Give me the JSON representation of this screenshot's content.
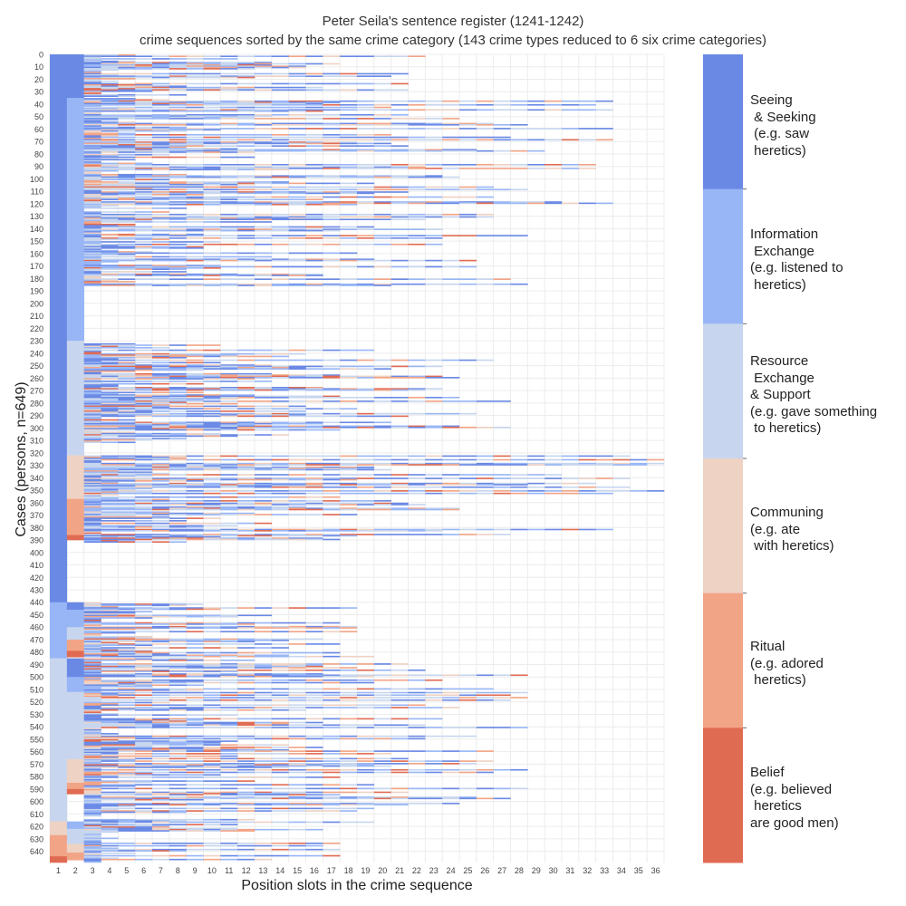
{
  "chart_data": {
    "type": "heatmap",
    "title": "Peter Seila's sentence register (1241-1242)",
    "subtitle": "crime sequences sorted by the same crime category (143 crime types reduced to 6 six crime categories)",
    "xlabel": "Position slots in the crime sequence",
    "ylabel": "Cases (persons, n=649)",
    "x_ticks": [
      "1",
      "2",
      "3",
      "4",
      "5",
      "6",
      "7",
      "8",
      "9",
      "10",
      "11",
      "12",
      "13",
      "14",
      "15",
      "16",
      "17",
      "18",
      "19",
      "20",
      "21",
      "22",
      "23",
      "24",
      "25",
      "26",
      "27",
      "28",
      "29",
      "30",
      "31",
      "32",
      "33",
      "34",
      "35",
      "36"
    ],
    "y_ticks": [
      "0",
      "10",
      "20",
      "30",
      "40",
      "50",
      "60",
      "70",
      "80",
      "90",
      "100",
      "110",
      "120",
      "130",
      "140",
      "150",
      "160",
      "170",
      "180",
      "190",
      "200",
      "210",
      "220",
      "230",
      "240",
      "250",
      "260",
      "270",
      "280",
      "290",
      "300",
      "310",
      "320",
      "330",
      "340",
      "350",
      "360",
      "370",
      "380",
      "390",
      "400",
      "410",
      "420",
      "430",
      "440",
      "450",
      "460",
      "470",
      "480",
      "490",
      "500",
      "510",
      "520",
      "530",
      "540",
      "550",
      "560",
      "570",
      "580",
      "590",
      "600",
      "610",
      "620",
      "630",
      "640"
    ],
    "n_cases": 649,
    "n_slots": 36,
    "categories": [
      {
        "name": "Seeing & Seeking",
        "label": "Seeing\n & Seeking\n (e.g. saw\n heretics)",
        "color": "#6a89e5"
      },
      {
        "name": "Information Exchange",
        "label": "Information\n Exchange\n(e.g. listened to\n heretics)",
        "color": "#98b6f6"
      },
      {
        "name": "Resource Exchange & Support",
        "label": "Resource\n Exchange\n& Support\n(e.g. gave something\n to heretics)",
        "color": "#c7d6ee"
      },
      {
        "name": "Communing",
        "label": "Communing\n(e.g. ate\n with heretics)",
        "color": "#eed2c4"
      },
      {
        "name": "Ritual",
        "label": "Ritual\n(e.g. adored\n heretics)",
        "color": "#f2a486"
      },
      {
        "name": "Belief",
        "label": "Belief\n(e.g. believed\n heretics\nare good men)",
        "color": "#e06b53"
      }
    ],
    "slot1_blocks": [
      {
        "from": 0,
        "to": 440,
        "category": 0
      },
      {
        "from": 440,
        "to": 485,
        "category": 1
      },
      {
        "from": 485,
        "to": 616,
        "category": 2
      },
      {
        "from": 616,
        "to": 627,
        "category": 3
      },
      {
        "from": 627,
        "to": 644,
        "category": 4
      },
      {
        "from": 644,
        "to": 649,
        "category": 5
      }
    ],
    "slot2_blocks": [
      {
        "from": 0,
        "to": 35,
        "category": 0
      },
      {
        "from": 35,
        "to": 230,
        "category": 1
      },
      {
        "from": 230,
        "to": 322,
        "category": 2
      },
      {
        "from": 322,
        "to": 357,
        "category": 3
      },
      {
        "from": 357,
        "to": 386,
        "category": 4
      },
      {
        "from": 386,
        "to": 390,
        "category": 5
      },
      {
        "from": 440,
        "to": 446,
        "category": 0
      },
      {
        "from": 446,
        "to": 460,
        "category": 1
      },
      {
        "from": 460,
        "to": 470,
        "category": 2
      },
      {
        "from": 470,
        "to": 479,
        "category": 4
      },
      {
        "from": 479,
        "to": 484,
        "category": 5
      },
      {
        "from": 485,
        "to": 500,
        "category": 0
      },
      {
        "from": 500,
        "to": 512,
        "category": 1
      },
      {
        "from": 512,
        "to": 566,
        "category": 2
      },
      {
        "from": 566,
        "to": 585,
        "category": 3
      },
      {
        "from": 585,
        "to": 590,
        "category": 4
      },
      {
        "from": 590,
        "to": 594,
        "category": 5
      },
      {
        "from": 616,
        "to": 622,
        "category": 1
      },
      {
        "from": 622,
        "to": 634,
        "category": 2
      },
      {
        "from": 634,
        "to": 641,
        "category": 3
      },
      {
        "from": 641,
        "to": 647,
        "category": 4
      }
    ],
    "seq_groups": [
      {
        "from": 0,
        "to": 34,
        "maxlen": 26
      },
      {
        "from": 35,
        "to": 124,
        "maxlen": 33
      },
      {
        "from": 126,
        "to": 186,
        "maxlen": 29
      },
      {
        "from": 232,
        "to": 312,
        "maxlen": 27
      },
      {
        "from": 322,
        "to": 392,
        "maxlen": 36
      },
      {
        "from": 440,
        "to": 484,
        "maxlen": 19
      },
      {
        "from": 485,
        "to": 612,
        "maxlen": 28
      },
      {
        "from": 614,
        "to": 649,
        "maxlen": 19
      }
    ]
  }
}
